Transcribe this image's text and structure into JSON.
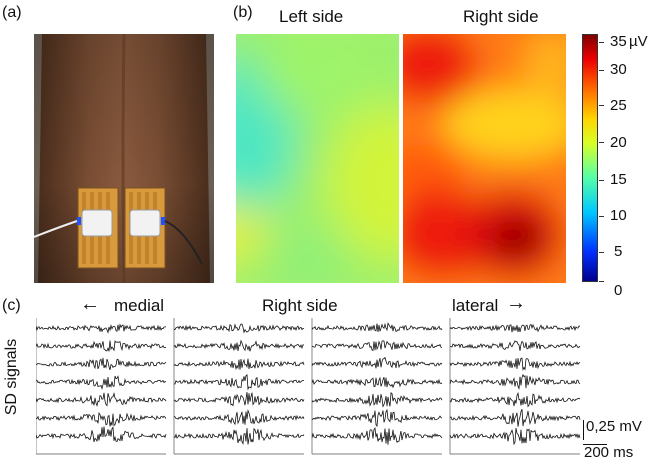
{
  "panels": {
    "a": "(a)",
    "b": "(b)",
    "c": "(c)"
  },
  "heatmap": {
    "left_title": "Left side",
    "right_title": "Right side",
    "colorbar": {
      "ticks": [
        "35",
        "30",
        "25",
        "20",
        "15",
        "10",
        "5",
        "0"
      ],
      "unit": "µV",
      "range": [
        0,
        35
      ]
    }
  },
  "signals": {
    "ylabel": "SD signals",
    "medial_label": "medial",
    "center_title": "Right side",
    "lateral_label": "lateral",
    "left_arrow": "←",
    "right_arrow": "→",
    "amp_scale": "0,25 mV",
    "time_scale": "200 ms",
    "blocks": 4,
    "channels_per_block": 7
  }
}
